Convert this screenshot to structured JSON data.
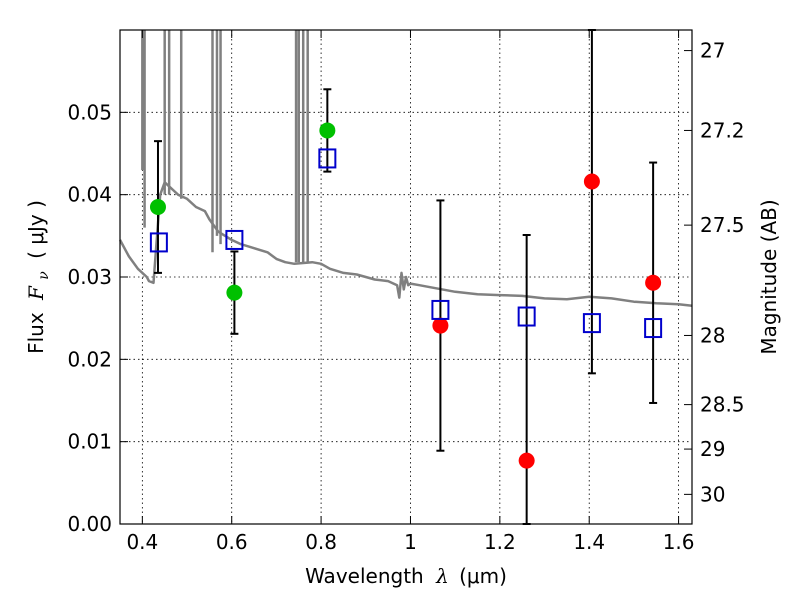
{
  "chart_data": {
    "type": "scatter",
    "xlabel_prefix": "Wavelength",
    "xlabel_symbol": "λ",
    "xlabel_unit": "(μm)",
    "ylabel_prefix": "Flux",
    "ylabel_symbol": "F",
    "ylabel_subscript": "ν",
    "ylabel_unit": "( μJy )",
    "y2label": "Magnitude (AB)",
    "xlim": [
      0.35,
      1.63
    ],
    "ylim": [
      0.0,
      0.06
    ],
    "x_ticks": [
      0.4,
      0.6,
      0.8,
      1.0,
      1.2,
      1.4,
      1.6
    ],
    "x_tick_labels": [
      "0.4",
      "0.6",
      "0.8",
      "1",
      "1.2",
      "1.4",
      "1.6"
    ],
    "y_ticks": [
      0.0,
      0.01,
      0.02,
      0.03,
      0.04,
      0.05
    ],
    "y_tick_labels": [
      "0.00",
      "0.01",
      "0.02",
      "0.03",
      "0.04",
      "0.05"
    ],
    "y2_ticks": [
      {
        "label": "27",
        "flux": 0.0575
      },
      {
        "label": "27.2",
        "flux": 0.0478
      },
      {
        "label": "27.5",
        "flux": 0.0363
      },
      {
        "label": "28",
        "flux": 0.0229
      },
      {
        "label": "28.5",
        "flux": 0.0145
      },
      {
        "label": "29",
        "flux": 0.0091
      },
      {
        "label": "30",
        "flux": 0.0036
      }
    ],
    "grid": "dotted",
    "colors": {
      "template": "#808080",
      "observed_optical": "#00c000",
      "observed_nir": "#ff0000",
      "model": "#0000cc",
      "errorbar": "#000000"
    },
    "series": [
      {
        "name": "observed-optical",
        "marker": "circle",
        "color": "#00c000",
        "points": [
          {
            "x": 0.435,
            "y": 0.0385,
            "err": 0.008
          },
          {
            "x": 0.606,
            "y": 0.0281,
            "err": 0.005
          },
          {
            "x": 0.814,
            "y": 0.0478,
            "err": 0.005
          }
        ]
      },
      {
        "name": "observed-nir",
        "marker": "circle",
        "color": "#ff0000",
        "points": [
          {
            "x": 1.067,
            "y": 0.0241,
            "err": 0.0152
          },
          {
            "x": 1.26,
            "y": 0.0077,
            "err": 0.0274
          },
          {
            "x": 1.406,
            "y": 0.0416,
            "err": 0.0233
          },
          {
            "x": 1.543,
            "y": 0.0293,
            "err": 0.0146
          }
        ]
      },
      {
        "name": "model-photometry",
        "marker": "square",
        "color": "#0000cc",
        "points": [
          {
            "x": 0.437,
            "y": 0.0342
          },
          {
            "x": 0.606,
            "y": 0.0345
          },
          {
            "x": 0.814,
            "y": 0.0444
          },
          {
            "x": 1.067,
            "y": 0.026
          },
          {
            "x": 1.26,
            "y": 0.0252
          },
          {
            "x": 1.406,
            "y": 0.0244
          },
          {
            "x": 1.543,
            "y": 0.0238
          }
        ]
      }
    ],
    "template_spectrum": {
      "name": "sed-template",
      "color": "#808080",
      "x": [
        0.35,
        0.37,
        0.39,
        0.41,
        0.415,
        0.425,
        0.43,
        0.44,
        0.45,
        0.46,
        0.47,
        0.48,
        0.5,
        0.52,
        0.54,
        0.55,
        0.57,
        0.6,
        0.62,
        0.65,
        0.68,
        0.7,
        0.72,
        0.74,
        0.78,
        0.8,
        0.82,
        0.85,
        0.88,
        0.9,
        0.92,
        0.95,
        0.97,
        0.975,
        0.98,
        0.985,
        0.99,
        0.995,
        1.0,
        1.02,
        1.05,
        1.1,
        1.15,
        1.2,
        1.25,
        1.3,
        1.35,
        1.4,
        1.45,
        1.5,
        1.55,
        1.6,
        1.63
      ],
      "y": [
        0.0345,
        0.0325,
        0.031,
        0.03,
        0.0295,
        0.0293,
        0.033,
        0.04,
        0.0415,
        0.041,
        0.0405,
        0.04,
        0.0395,
        0.0385,
        0.038,
        0.037,
        0.0355,
        0.0345,
        0.034,
        0.0335,
        0.033,
        0.0322,
        0.0318,
        0.0316,
        0.0318,
        0.0316,
        0.031,
        0.0305,
        0.0303,
        0.03,
        0.0297,
        0.0295,
        0.029,
        0.0275,
        0.0305,
        0.0285,
        0.03,
        0.029,
        0.0292,
        0.029,
        0.0287,
        0.0282,
        0.0279,
        0.0278,
        0.0277,
        0.0274,
        0.0273,
        0.0276,
        0.0274,
        0.027,
        0.0268,
        0.0267,
        0.0265
      ]
    },
    "spikes": [
      {
        "x": 0.4,
        "y_low": 0.043,
        "y_high": 0.06
      },
      {
        "x": 0.405,
        "y_low": 0.036,
        "y_high": 0.06
      },
      {
        "x": 0.45,
        "y_low": 0.04,
        "y_high": 0.06
      },
      {
        "x": 0.46,
        "y_low": 0.04,
        "y_high": 0.06
      },
      {
        "x": 0.487,
        "y_low": 0.0395,
        "y_high": 0.06
      },
      {
        "x": 0.557,
        "y_low": 0.033,
        "y_high": 0.06
      },
      {
        "x": 0.567,
        "y_low": 0.035,
        "y_high": 0.06
      },
      {
        "x": 0.575,
        "y_low": 0.034,
        "y_high": 0.06
      },
      {
        "x": 0.744,
        "y_low": 0.0318,
        "y_high": 0.06
      },
      {
        "x": 0.75,
        "y_low": 0.0318,
        "y_high": 0.06
      },
      {
        "x": 0.76,
        "y_low": 0.0318,
        "y_high": 0.06
      },
      {
        "x": 0.77,
        "y_low": 0.0318,
        "y_high": 0.06
      }
    ]
  }
}
